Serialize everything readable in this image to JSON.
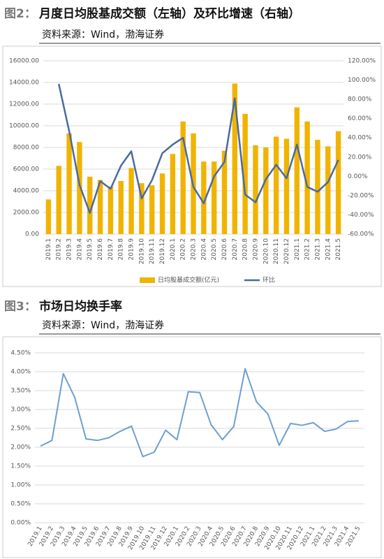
{
  "chart_data": [
    {
      "type": "bar-line",
      "label": "图2：",
      "title": "月度日均股基成交额（左轴）及环比增速（右轴）",
      "source": "资料来源：Wind，渤海证券",
      "categories": [
        "2019.1",
        "2019.2",
        "2019.3",
        "2019.4",
        "2019.5",
        "2019.6",
        "2019.7",
        "2019.8",
        "2019.9",
        "2019.10",
        "2019.11",
        "2019.12",
        "2020.1",
        "2020.2",
        "2020.3",
        "2020.4",
        "2020.5",
        "2020.6",
        "2020.7",
        "2020.8",
        "2020.9",
        "2020.10",
        "2020.11",
        "2020.12",
        "2021.1",
        "2021.2",
        "2021.3",
        "2021.4",
        "2021.5"
      ],
      "series": [
        {
          "name": "日均股基成交额(亿元)",
          "color": "#f0b400",
          "values": [
            3200,
            6300,
            9300,
            8500,
            5300,
            5000,
            4400,
            4900,
            6100,
            4700,
            4500,
            5600,
            7400,
            10400,
            9300,
            6700,
            6700,
            7700,
            13900,
            11100,
            8200,
            8000,
            9000,
            8800,
            11700,
            10400,
            8700,
            8100,
            9500
          ]
        },
        {
          "name": "环比",
          "color": "#4a6a9e",
          "axis": "y2",
          "values": [
            null,
            96,
            47,
            -9,
            -38,
            -5,
            -13,
            11,
            26,
            -23,
            -4,
            24,
            33,
            40,
            -11,
            -28,
            0,
            15,
            81,
            -19,
            -27,
            -3,
            12,
            -2,
            33,
            -11,
            -16,
            -6,
            17
          ]
        }
      ],
      "ylim": [
        0,
        16000
      ],
      "yticks": [
        {
          "value": 0,
          "label": "0.00"
        },
        {
          "value": 2000,
          "label": "2000.00"
        },
        {
          "value": 4000,
          "label": "4000.00"
        },
        {
          "value": 6000,
          "label": "6000.00"
        },
        {
          "value": 8000,
          "label": "8000.00"
        },
        {
          "value": 10000,
          "label": "10000.00"
        },
        {
          "value": 12000,
          "label": "12000.00"
        },
        {
          "value": 14000,
          "label": "14000.00"
        },
        {
          "value": 16000,
          "label": "16000.00"
        }
      ],
      "y2lim": [
        -60,
        120
      ],
      "y2ticks": [
        {
          "value": -60,
          "label": "-60.00%"
        },
        {
          "value": -40,
          "label": "-40.00%"
        },
        {
          "value": -20,
          "label": "-20.00%"
        },
        {
          "value": 0,
          "label": "0.00%"
        },
        {
          "value": 20,
          "label": "20.00%"
        },
        {
          "value": 40,
          "label": "40.00%"
        },
        {
          "value": 60,
          "label": "60.00%"
        },
        {
          "value": 80,
          "label": "80.00%"
        },
        {
          "value": 100,
          "label": "100.00%"
        },
        {
          "value": 120,
          "label": "120.00%"
        }
      ],
      "grid": true,
      "legend": "bottom"
    },
    {
      "type": "line",
      "label": "图3：",
      "title": "市场日均换手率",
      "source": "资料来源：Wind，渤海证券",
      "categories": [
        "2019.1",
        "2019.2",
        "2019.3",
        "2019.4",
        "2019.5",
        "2019.6",
        "2019.7",
        "2019.8",
        "2019.9",
        "2019.10",
        "2019.11",
        "2019.12",
        "2020.1",
        "2020.2",
        "2020.3",
        "2020.4",
        "2020.5",
        "2020.6",
        "2020.7",
        "2020.8",
        "2020.9",
        "2020.10",
        "2020.11",
        "2020.12",
        "2021.1",
        "2021.2",
        "2021.3",
        "2021.4",
        "2021.5"
      ],
      "series": [
        {
          "color": "#6d9fd3",
          "values": [
            2.03,
            2.18,
            3.95,
            3.32,
            2.22,
            2.18,
            2.25,
            2.42,
            2.56,
            1.75,
            1.87,
            2.45,
            2.2,
            3.47,
            3.45,
            2.6,
            2.2,
            2.55,
            4.08,
            3.2,
            2.88,
            2.05,
            2.63,
            2.58,
            2.65,
            2.42,
            2.48,
            2.68,
            2.7
          ]
        }
      ],
      "ylim": [
        0,
        4.5
      ],
      "yticks": [
        {
          "value": 0,
          "label": "0.00%"
        },
        {
          "value": 0.5,
          "label": "0.50%"
        },
        {
          "value": 1,
          "label": "1.00%"
        },
        {
          "value": 1.5,
          "label": "1.50%"
        },
        {
          "value": 2,
          "label": "2.00%"
        },
        {
          "value": 2.5,
          "label": "2.50%"
        },
        {
          "value": 3,
          "label": "3.00%"
        },
        {
          "value": 3.5,
          "label": "3.50%"
        },
        {
          "value": 4,
          "label": "4.00%"
        },
        {
          "value": 4.5,
          "label": "4.50%"
        }
      ],
      "grid": true
    }
  ]
}
